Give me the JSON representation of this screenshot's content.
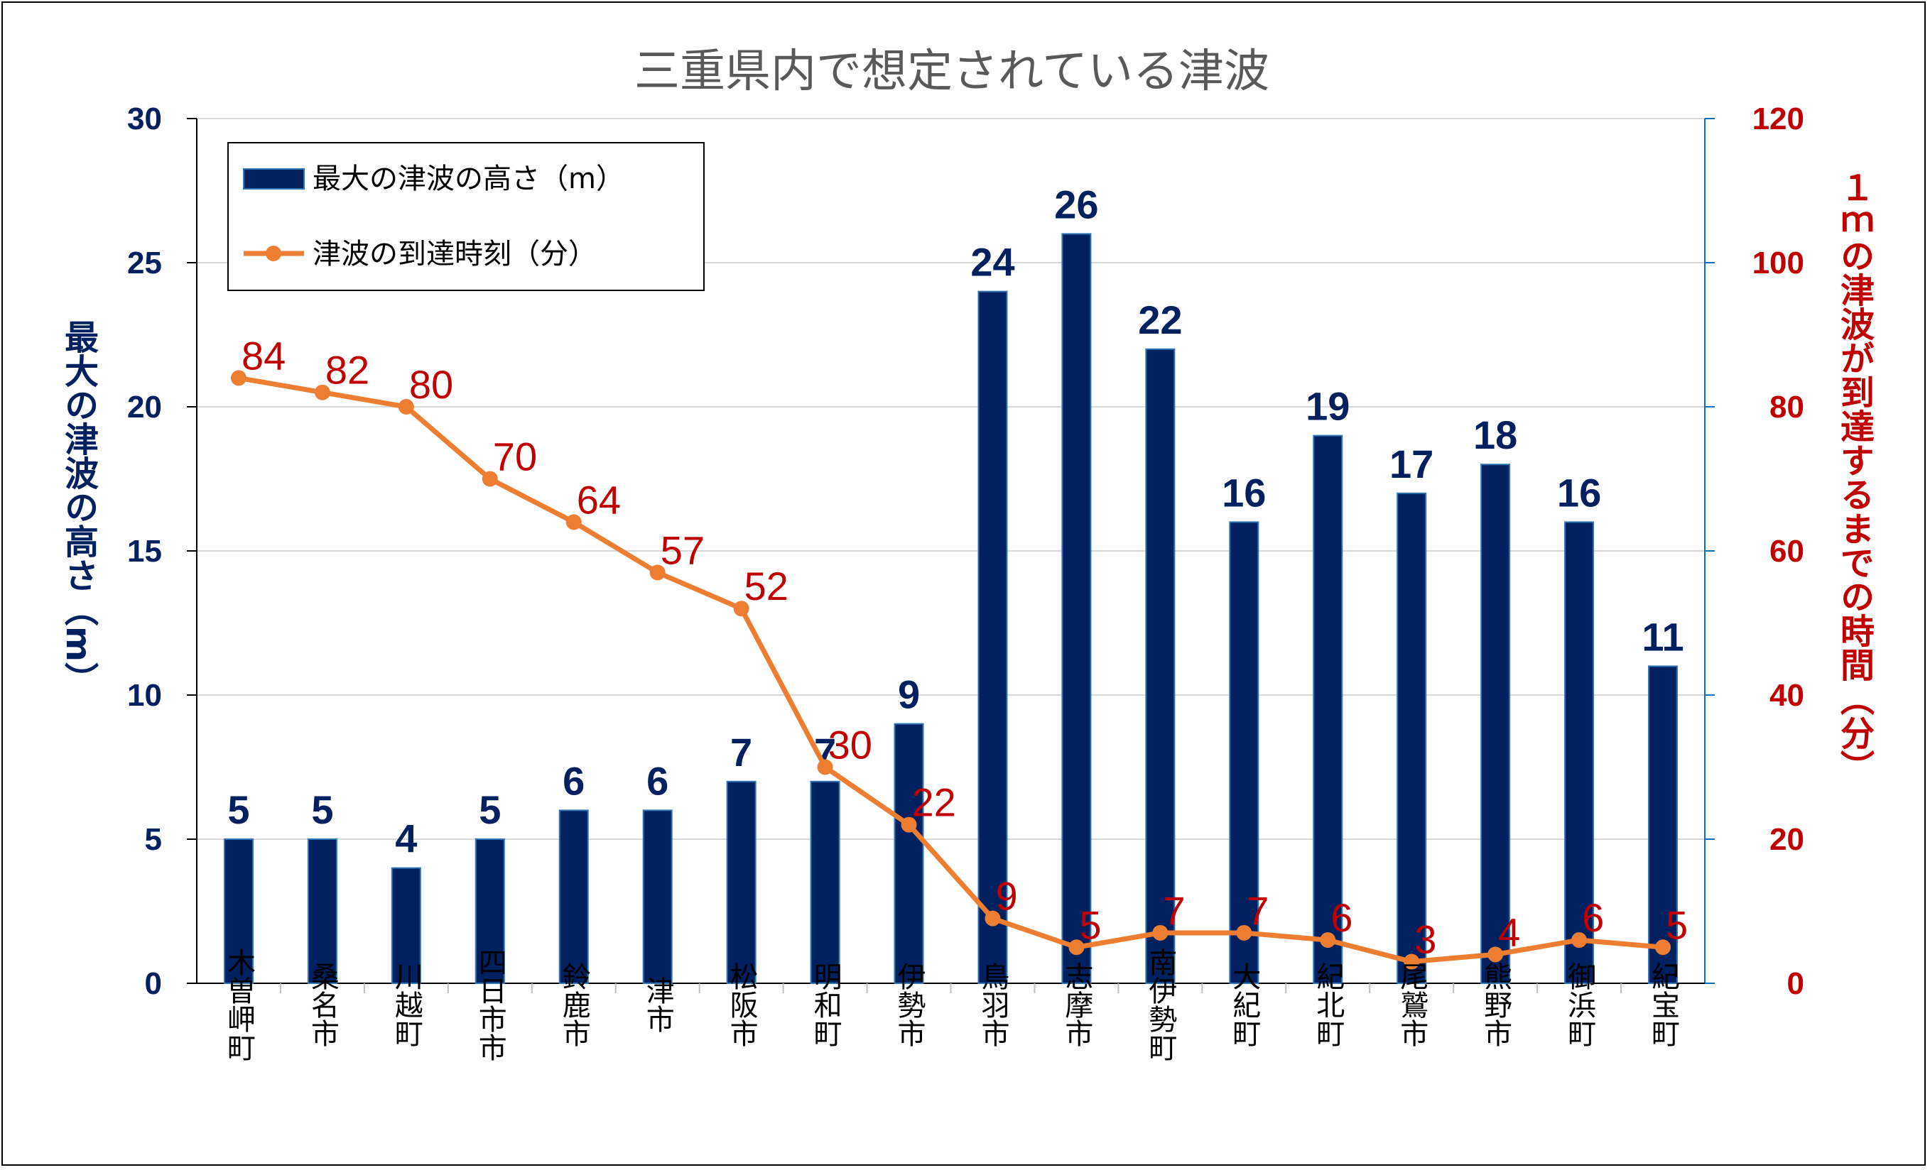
{
  "chart_data": {
    "type": "bar",
    "title": "三重県内で想定されている津波",
    "categories": [
      "木曽岬町",
      "桑名市",
      "川越町",
      "四日市市",
      "鈴鹿市",
      "津市",
      "松阪市",
      "明和町",
      "伊勢市",
      "鳥羽市",
      "志摩市",
      "南伊勢町",
      "大紀町",
      "紀北町",
      "尾鷲市",
      "熊野市",
      "御浜町",
      "紀宝町"
    ],
    "series": [
      {
        "name": "最大の津波の高さ（m）",
        "type": "bar",
        "axis": "left",
        "color": "#002060",
        "values": [
          5,
          5,
          4,
          5,
          6,
          6,
          7,
          7,
          9,
          24,
          26,
          22,
          16,
          19,
          17,
          18,
          16,
          11
        ]
      },
      {
        "name": "津波の到達時刻（分）",
        "type": "line",
        "axis": "right",
        "color": "#ed7d31",
        "label_color": "#c00000",
        "values": [
          84,
          82,
          80,
          70,
          64,
          57,
          52,
          30,
          22,
          9,
          5,
          7,
          7,
          6,
          3,
          4,
          6,
          5
        ]
      }
    ],
    "ylabel_left": "最大の津波の高さ（m）",
    "ylabel_right": "１ｍの津波が到達するまでの時間（分）",
    "ylim_left": [
      0,
      30
    ],
    "yticks_left": [
      "0",
      "5",
      "10",
      "15",
      "20",
      "25",
      "30"
    ],
    "ylim_right": [
      0,
      120
    ],
    "yticks_right": [
      "0",
      "20",
      "40",
      "60",
      "80",
      "100",
      "120"
    ],
    "grid": true,
    "legend_position": "top-left"
  }
}
